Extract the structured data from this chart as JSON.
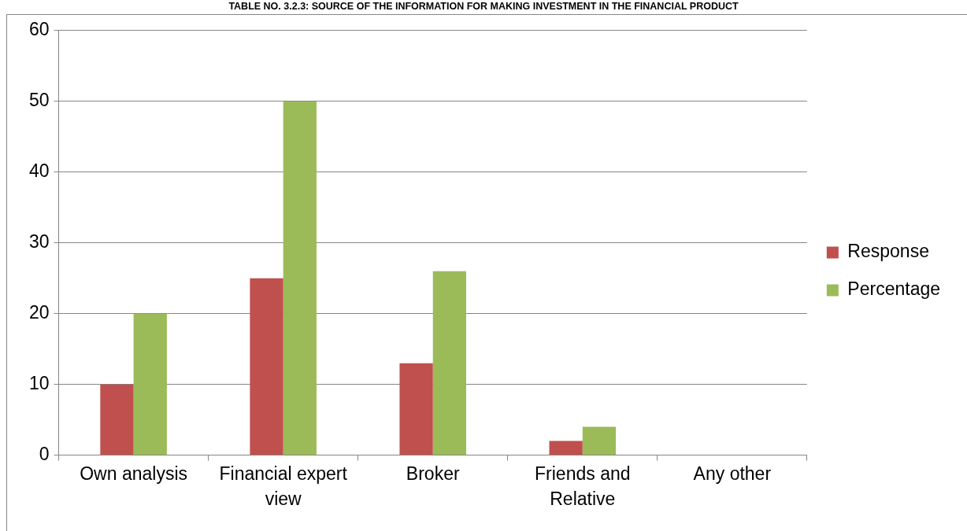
{
  "chart_data": {
    "type": "bar",
    "title": "TABLE NO. 3.2.3: SOURCE OF THE INFORMATION FOR MAKING INVESTMENT IN THE FINANCIAL PRODUCT",
    "categories": [
      "Own analysis",
      "Financial expert view",
      "Broker",
      "Friends and Relative",
      "Any other"
    ],
    "series": [
      {
        "name": "Response",
        "color": "#c0504d",
        "values": [
          10,
          25,
          13,
          2,
          0
        ]
      },
      {
        "name": "Percentage",
        "color": "#9bbb59",
        "values": [
          20,
          50,
          26,
          4,
          0
        ]
      }
    ],
    "ylim": [
      0,
      60
    ],
    "yticks": [
      0,
      10,
      20,
      30,
      40,
      50,
      60
    ],
    "grid": "y",
    "legend": "right"
  }
}
